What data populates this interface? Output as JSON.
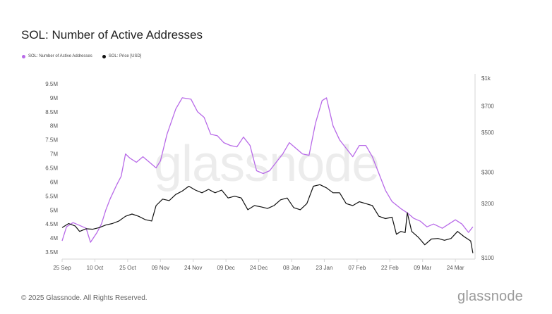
{
  "title": "SOL: Number of Active Addresses",
  "legend": [
    {
      "label": "SOL: Number of Active Addresses",
      "color": "#b86ae8"
    },
    {
      "label": "SOL: Price [USD]",
      "color": "#111111"
    }
  ],
  "watermark": "glassnode",
  "footer": {
    "copyright": "© 2025 Glassnode. All Rights Reserved.",
    "brand": "glassnode"
  },
  "chart_data": {
    "type": "line",
    "x_ticks": [
      "25 Sep",
      "10 Oct",
      "25 Oct",
      "09 Nov",
      "24 Nov",
      "09 Dec",
      "24 Dec",
      "08 Jan",
      "23 Jan",
      "07 Feb",
      "22 Feb",
      "09 Mar",
      "24 Mar"
    ],
    "y_left_ticks": [
      "3.5M",
      "4M",
      "4.5M",
      "5M",
      "5.5M",
      "6M",
      "6.5M",
      "7M",
      "7.5M",
      "8M",
      "8.5M",
      "9M",
      "9.5M"
    ],
    "y_right_ticks": [
      "$100",
      "$200",
      "$300",
      "$500",
      "$700",
      "$1k"
    ],
    "y_left_range": [
      3300000,
      9700000
    ],
    "y_right_range": [
      100,
      1000
    ],
    "y_right_scale": "log",
    "x_range": [
      "2024-09-25",
      "2025-04-02"
    ],
    "grid": false,
    "legend_position": "top-left",
    "series": [
      {
        "name": "SOL: Number of Active Addresses",
        "axis": "left",
        "color": "#b86ae8",
        "points": [
          [
            "2024-09-25",
            3900000
          ],
          [
            "2024-09-27",
            4400000
          ],
          [
            "2024-09-30",
            4550000
          ],
          [
            "2024-10-03",
            4450000
          ],
          [
            "2024-10-06",
            4350000
          ],
          [
            "2024-10-08",
            3850000
          ],
          [
            "2024-10-11",
            4200000
          ],
          [
            "2024-10-13",
            4500000
          ],
          [
            "2024-10-15",
            5000000
          ],
          [
            "2024-10-17",
            5400000
          ],
          [
            "2024-10-20",
            5900000
          ],
          [
            "2024-10-22",
            6200000
          ],
          [
            "2024-10-24",
            7000000
          ],
          [
            "2024-10-26",
            6850000
          ],
          [
            "2024-10-29",
            6700000
          ],
          [
            "2024-11-01",
            6900000
          ],
          [
            "2024-11-04",
            6700000
          ],
          [
            "2024-11-07",
            6500000
          ],
          [
            "2024-11-09",
            6750000
          ],
          [
            "2024-11-12",
            7700000
          ],
          [
            "2024-11-16",
            8600000
          ],
          [
            "2024-11-19",
            9000000
          ],
          [
            "2024-11-23",
            8950000
          ],
          [
            "2024-11-26",
            8500000
          ],
          [
            "2024-11-29",
            8300000
          ],
          [
            "2024-12-02",
            7700000
          ],
          [
            "2024-12-05",
            7650000
          ],
          [
            "2024-12-08",
            7400000
          ],
          [
            "2024-12-11",
            7300000
          ],
          [
            "2024-12-14",
            7250000
          ],
          [
            "2024-12-17",
            7600000
          ],
          [
            "2024-12-20",
            7300000
          ],
          [
            "2024-12-23",
            6400000
          ],
          [
            "2024-12-26",
            6300000
          ],
          [
            "2024-12-29",
            6400000
          ],
          [
            "2025-01-01",
            6700000
          ],
          [
            "2025-01-04",
            7000000
          ],
          [
            "2025-01-07",
            7400000
          ],
          [
            "2025-01-10",
            7200000
          ],
          [
            "2025-01-13",
            7000000
          ],
          [
            "2025-01-16",
            6950000
          ],
          [
            "2025-01-19",
            8100000
          ],
          [
            "2025-01-22",
            8900000
          ],
          [
            "2025-01-24",
            9000000
          ],
          [
            "2025-01-27",
            8000000
          ],
          [
            "2025-01-30",
            7500000
          ],
          [
            "2025-02-02",
            7200000
          ],
          [
            "2025-02-05",
            6900000
          ],
          [
            "2025-02-08",
            7300000
          ],
          [
            "2025-02-11",
            7300000
          ],
          [
            "2025-02-14",
            6900000
          ],
          [
            "2025-02-17",
            6300000
          ],
          [
            "2025-02-20",
            5700000
          ],
          [
            "2025-02-23",
            5300000
          ],
          [
            "2025-02-27",
            5050000
          ],
          [
            "2025-03-02",
            4900000
          ],
          [
            "2025-03-05",
            4700000
          ],
          [
            "2025-03-08",
            4600000
          ],
          [
            "2025-03-11",
            4400000
          ],
          [
            "2025-03-14",
            4500000
          ],
          [
            "2025-03-18",
            4350000
          ],
          [
            "2025-03-21",
            4500000
          ],
          [
            "2025-03-24",
            4650000
          ],
          [
            "2025-03-27",
            4500000
          ],
          [
            "2025-03-30",
            4200000
          ],
          [
            "2025-04-01",
            4400000
          ]
        ]
      },
      {
        "name": "SOL: Price [USD]",
        "axis": "right",
        "color": "#111111",
        "points": [
          [
            "2024-09-25",
            147
          ],
          [
            "2024-09-28",
            155
          ],
          [
            "2024-10-01",
            150
          ],
          [
            "2024-10-03",
            140
          ],
          [
            "2024-10-06",
            145
          ],
          [
            "2024-10-09",
            144
          ],
          [
            "2024-10-12",
            147
          ],
          [
            "2024-10-15",
            152
          ],
          [
            "2024-10-18",
            155
          ],
          [
            "2024-10-21",
            160
          ],
          [
            "2024-10-24",
            170
          ],
          [
            "2024-10-27",
            175
          ],
          [
            "2024-10-30",
            170
          ],
          [
            "2024-11-02",
            163
          ],
          [
            "2024-11-05",
            160
          ],
          [
            "2024-11-07",
            195
          ],
          [
            "2024-11-10",
            212
          ],
          [
            "2024-11-13",
            208
          ],
          [
            "2024-11-16",
            225
          ],
          [
            "2024-11-19",
            235
          ],
          [
            "2024-11-22",
            250
          ],
          [
            "2024-11-25",
            238
          ],
          [
            "2024-11-28",
            230
          ],
          [
            "2024-12-01",
            240
          ],
          [
            "2024-12-04",
            230
          ],
          [
            "2024-12-07",
            238
          ],
          [
            "2024-12-10",
            215
          ],
          [
            "2024-12-13",
            220
          ],
          [
            "2024-12-16",
            215
          ],
          [
            "2024-12-19",
            185
          ],
          [
            "2024-12-22",
            195
          ],
          [
            "2024-12-25",
            192
          ],
          [
            "2024-12-28",
            188
          ],
          [
            "2024-12-31",
            195
          ],
          [
            "2025-01-03",
            210
          ],
          [
            "2025-01-06",
            215
          ],
          [
            "2025-01-09",
            190
          ],
          [
            "2025-01-12",
            185
          ],
          [
            "2025-01-15",
            200
          ],
          [
            "2025-01-18",
            250
          ],
          [
            "2025-01-21",
            255
          ],
          [
            "2025-01-24",
            245
          ],
          [
            "2025-01-27",
            230
          ],
          [
            "2025-01-30",
            230
          ],
          [
            "2025-02-02",
            200
          ],
          [
            "2025-02-05",
            195
          ],
          [
            "2025-02-08",
            205
          ],
          [
            "2025-02-11",
            200
          ],
          [
            "2025-02-14",
            195
          ],
          [
            "2025-02-17",
            170
          ],
          [
            "2025-02-20",
            165
          ],
          [
            "2025-02-23",
            168
          ],
          [
            "2025-02-25",
            135
          ],
          [
            "2025-02-27",
            140
          ],
          [
            "2025-03-01",
            138
          ],
          [
            "2025-03-02",
            178
          ],
          [
            "2025-03-04",
            140
          ],
          [
            "2025-03-07",
            130
          ],
          [
            "2025-03-10",
            118
          ],
          [
            "2025-03-13",
            127
          ],
          [
            "2025-03-16",
            128
          ],
          [
            "2025-03-19",
            125
          ],
          [
            "2025-03-22",
            128
          ],
          [
            "2025-03-25",
            140
          ],
          [
            "2025-03-28",
            131
          ],
          [
            "2025-03-31",
            124
          ],
          [
            "2025-04-01",
            106
          ]
        ]
      }
    ]
  }
}
